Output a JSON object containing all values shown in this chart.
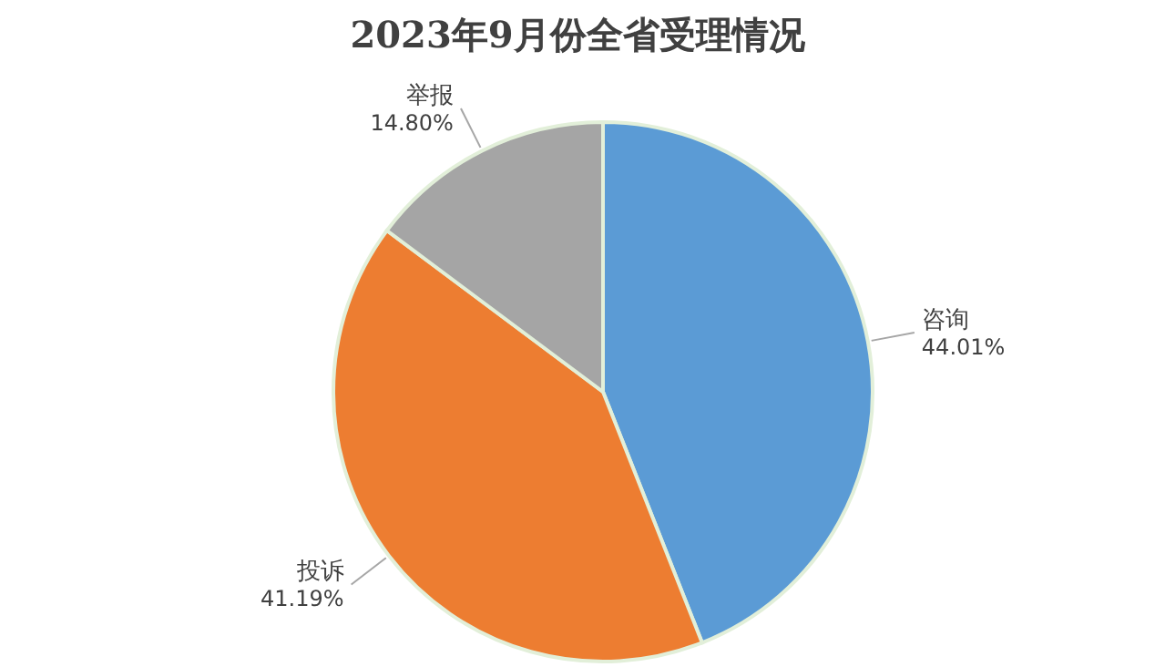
{
  "chart_data": {
    "type": "pie",
    "title": "2023年9月份全省受理情况",
    "categories": [
      "咨询",
      "投诉",
      "举报"
    ],
    "values": [
      44.01,
      41.19,
      14.8
    ],
    "value_labels": [
      "44.01%",
      "41.19%",
      "14.80%"
    ],
    "colors": [
      "#5b9bd5",
      "#ed7d31",
      "#a5a5a5"
    ],
    "legend": false
  }
}
